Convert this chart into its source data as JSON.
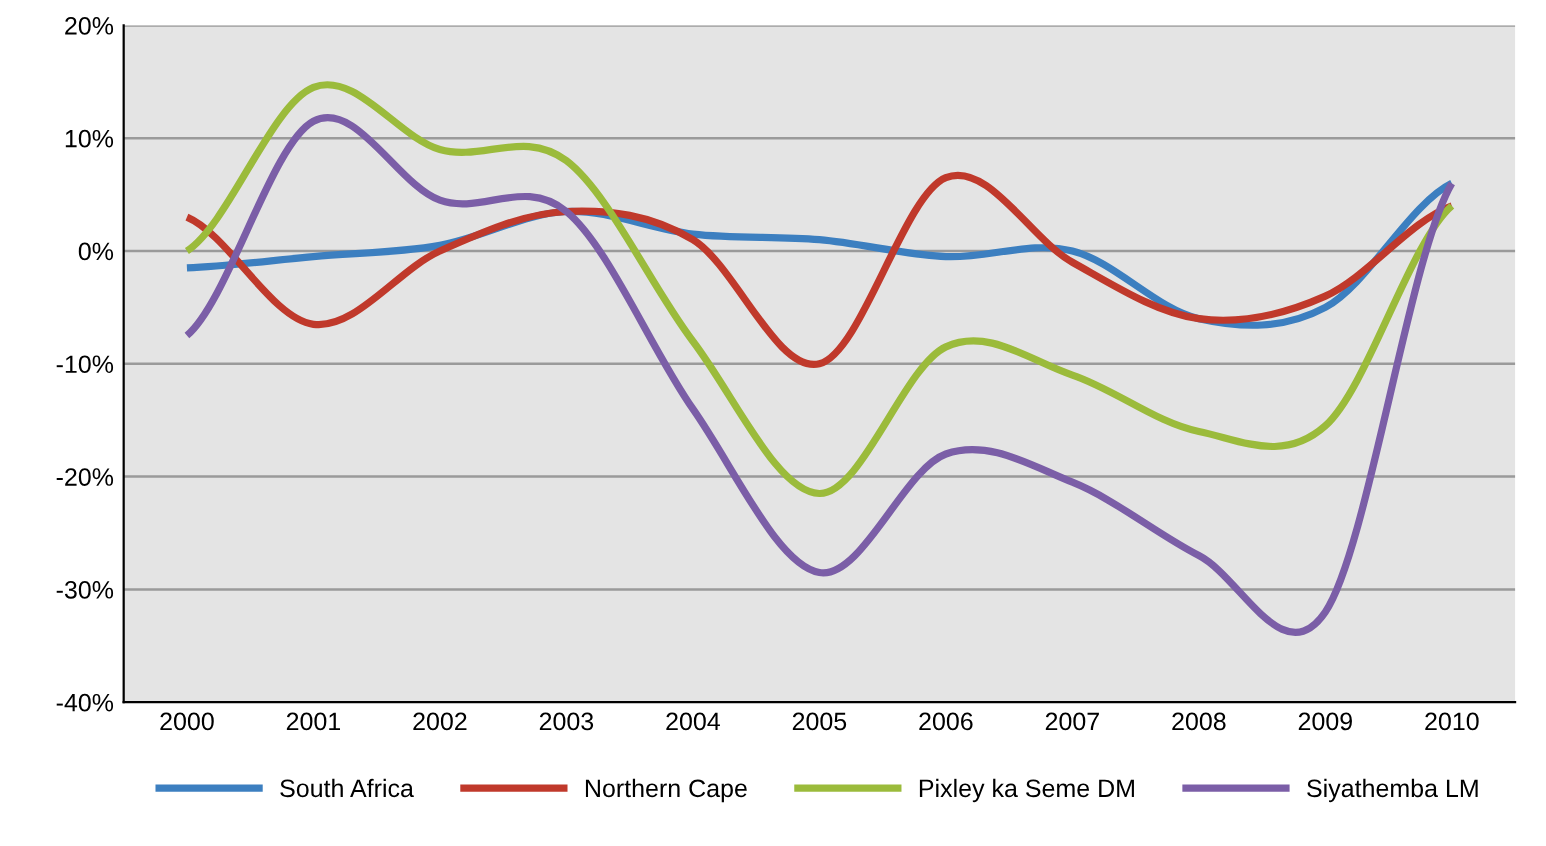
{
  "chart_data": {
    "type": "line",
    "categories": [
      "2000",
      "2001",
      "2002",
      "2003",
      "2004",
      "2005",
      "2006",
      "2007",
      "2008",
      "2009",
      "2010"
    ],
    "series": [
      {
        "name": "South Africa",
        "color": "#3c7fc0",
        "values": [
          -1.5,
          -0.5,
          0.5,
          3.5,
          1.5,
          1,
          -0.5,
          0,
          -6,
          -5,
          6
        ]
      },
      {
        "name": "Northern Cape",
        "color": "#c0392b",
        "values": [
          3,
          -6.5,
          0,
          3.5,
          1,
          -10,
          6.5,
          -1,
          -6,
          -4,
          4
        ]
      },
      {
        "name": "Pixley ka Seme DM",
        "color": "#9bbb3b",
        "values": [
          0,
          14.5,
          9,
          8,
          -8,
          -21.5,
          -8.5,
          -11,
          -16,
          -15.5,
          4
        ]
      },
      {
        "name": "Siyathemba LM",
        "color": "#7b5ea7",
        "values": [
          -7.5,
          11.5,
          4.5,
          3.5,
          -14,
          -28.5,
          -18,
          -20.5,
          -27,
          -32,
          6
        ]
      }
    ],
    "ylim": [
      -40,
      20
    ],
    "yticks": [
      {
        "value": -40,
        "label": "-40%"
      },
      {
        "value": -30,
        "label": "-30%"
      },
      {
        "value": -20,
        "label": "-20%"
      },
      {
        "value": -10,
        "label": "-10%"
      },
      {
        "value": 0,
        "label": "0%"
      },
      {
        "value": 10,
        "label": "10%"
      },
      {
        "value": 20,
        "label": "20%"
      }
    ],
    "grid": "y",
    "legend": "bottom",
    "marker": "none",
    "line_style": "solid"
  }
}
